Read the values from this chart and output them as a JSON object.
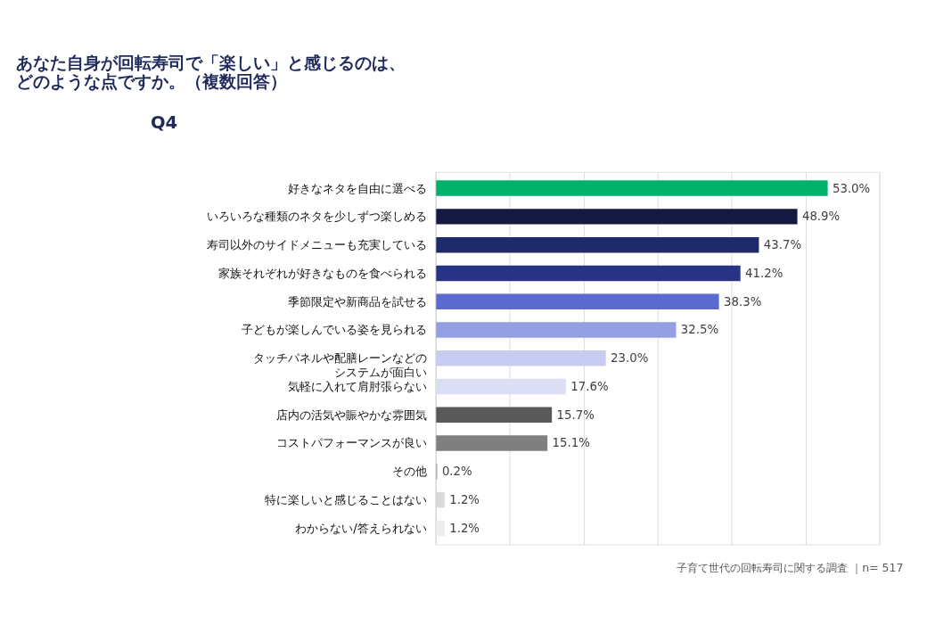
{
  "chart_data": {
    "type": "bar",
    "orientation": "horizontal",
    "title": [
      "あなた自身が回転寿司で「楽しい」と感じるのは、",
      "どのような点ですか。（複数回答）"
    ],
    "categories": [
      "好きなネタを自由に選べる",
      "いろいろな種類のネタを少しずつ楽しめる",
      "寿司以外のサイドメニューも充実している",
      "家族それぞれが好きなものを食べられる",
      "季節限定や新商品を試せる",
      "子どもが楽しんでいる姿を見られる",
      "タッチパネルや配膳レーンなどのシステムが面白い",
      "気軽に入れて肩肘張らない",
      "店内の活気や賑やかな雰囲気",
      "コストパフォーマンスが良い",
      "その他",
      "特に楽しいと感じることはない",
      "わからない/答えられない"
    ],
    "values": [
      53.0,
      48.9,
      43.7,
      41.2,
      38.3,
      32.5,
      23.0,
      17.6,
      15.7,
      15.1,
      0.2,
      1.2,
      1.2
    ],
    "colors": [
      "#00b26b",
      "#141a40",
      "#1f2a6b",
      "#283385",
      "#5a6ad0",
      "#949ee3",
      "#c8ccf0",
      "#dcdff3",
      "#595959",
      "#7f7f7f",
      "#a6a6a6",
      "#d9d9d9",
      "#ededed"
    ],
    "value_labels": [
      "53.0%",
      "48.9%",
      "43.7%",
      "41.2%",
      "38.3%",
      "32.5%",
      "23.0%",
      "17.6%",
      "15.7%",
      "15.1%",
      "0.2%",
      "1.2%",
      "1.2%"
    ],
    "xlim": [
      0,
      60
    ],
    "xticks": [
      {
        "value": 0,
        "label": null
      },
      {
        "value": 10,
        "label": null
      },
      {
        "value": 20,
        "label": null
      },
      {
        "value": 30,
        "label": null
      },
      {
        "value": 40,
        "label": null
      },
      {
        "value": 50,
        "label": null
      },
      {
        "value": 60,
        "label": null
      }
    ],
    "tick_labels": "y",
    "grid": "x",
    "legend": false,
    "annotations": [
      "Q4",
      "子育て世代の回転寿司に関する調査 ｜n= 517"
    ]
  }
}
